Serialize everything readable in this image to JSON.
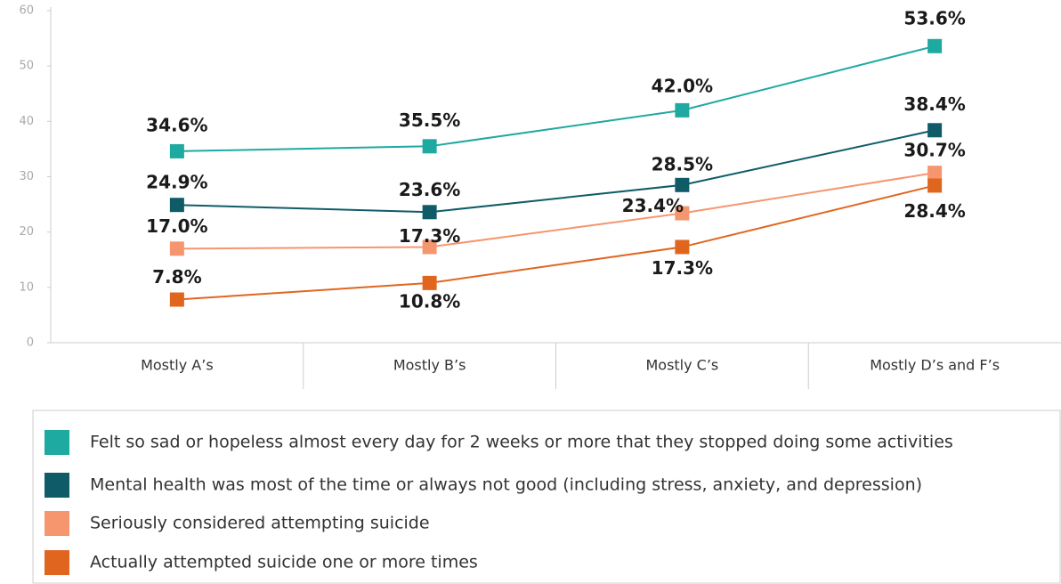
{
  "chart_data": {
    "type": "line",
    "categories": [
      "Mostly A’s",
      "Mostly B’s",
      "Mostly C’s",
      "Mostly D’s and F’s"
    ],
    "series": [
      {
        "name": "Felt so sad or hopeless almost every day for 2 weeks or more that they stopped doing some activities",
        "color": "#1ea9a1",
        "values": [
          34.6,
          35.5,
          42.0,
          53.6
        ],
        "value_labels": [
          "34.6%",
          "35.5%",
          "42.0%",
          "53.6%"
        ]
      },
      {
        "name": "Mental health was most of the time or always not good (including stress, anxiety, and depression)",
        "color": "#0f5c68",
        "values": [
          24.9,
          23.6,
          28.5,
          38.4
        ],
        "value_labels": [
          "24.9%",
          "23.6%",
          "28.5%",
          "38.4%"
        ]
      },
      {
        "name": "Seriously considered attempting suicide",
        "color": "#f5966f",
        "values": [
          17.0,
          17.3,
          23.4,
          30.7
        ],
        "value_labels": [
          "17.0%",
          "17.3%",
          "23.4%",
          "30.7%"
        ]
      },
      {
        "name": "Actually attempted suicide one or more times",
        "color": "#e0661f",
        "values": [
          7.8,
          10.8,
          17.3,
          28.4
        ],
        "value_labels": [
          "7.8%",
          "10.8%",
          "17.3%",
          "28.4%"
        ]
      }
    ],
    "ylim": [
      0,
      60
    ],
    "yticks": [
      0,
      10,
      20,
      30,
      40,
      50,
      60
    ],
    "legend": "bottom"
  }
}
